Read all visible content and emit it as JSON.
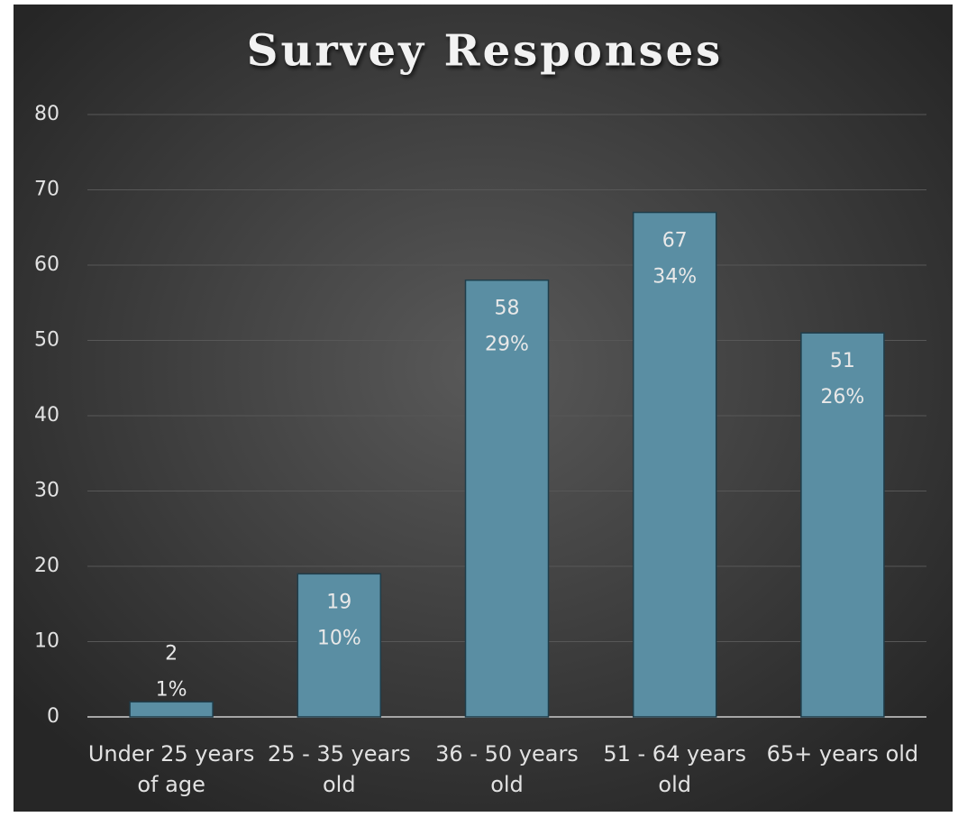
{
  "chart_data": {
    "type": "bar",
    "title": "Survey Responses",
    "categories": [
      "Under 25 years of age",
      "25 - 35 years old",
      "36 - 50 years old",
      "51 - 64 years old",
      "65+ years old"
    ],
    "values": [
      2,
      19,
      58,
      67,
      51
    ],
    "share_labels": [
      "1%",
      "10%",
      "29%",
      "34%",
      "26%"
    ],
    "color": "#5a8ea3",
    "ylim": [
      0,
      80
    ],
    "yticks": [
      0,
      10,
      20,
      30,
      40,
      50,
      60,
      70,
      80
    ],
    "grid": true
  }
}
